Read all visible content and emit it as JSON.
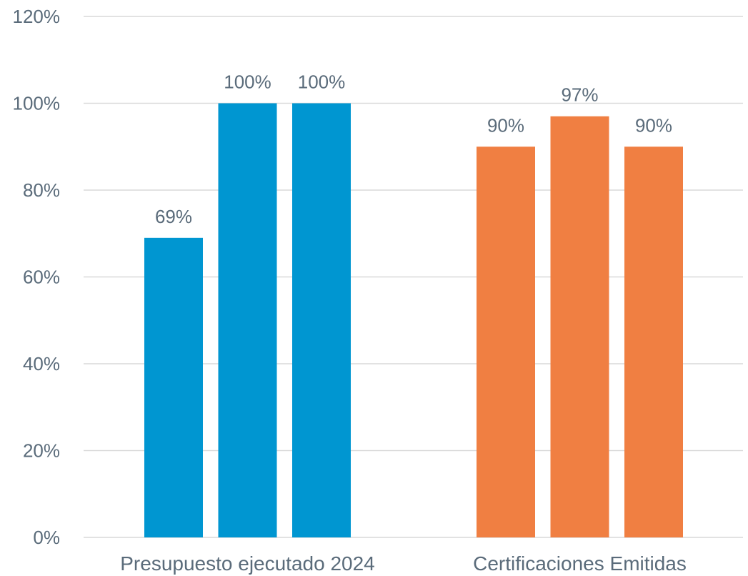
{
  "chart_data": {
    "type": "bar",
    "title": "",
    "xlabel": "",
    "ylabel": "",
    "ylim": [
      0,
      120
    ],
    "y_tick_step": 20,
    "y_tick_suffix": "%",
    "grid": true,
    "legend": "none",
    "groups": [
      {
        "category": "Presupuesto ejecutado 2024",
        "color": "#0096D1",
        "values": [
          69,
          100,
          100
        ],
        "labels": [
          "69%",
          "100%",
          "100%"
        ]
      },
      {
        "category": "Certificaciones Emitidas",
        "color": "#F07F42",
        "values": [
          90,
          97,
          90
        ],
        "labels": [
          "90%",
          "97%",
          "90%"
        ]
      }
    ]
  }
}
